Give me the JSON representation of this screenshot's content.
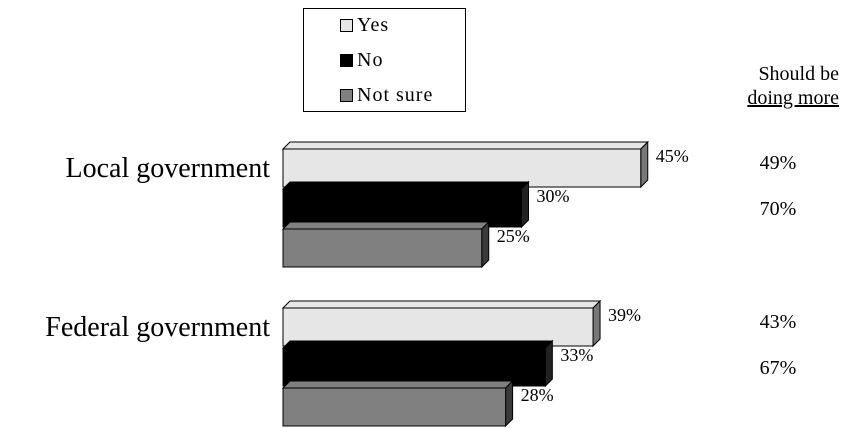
{
  "chart_data": {
    "type": "bar",
    "orientation": "horizontal",
    "categories": [
      "Local government",
      "Federal government"
    ],
    "series": [
      {
        "name": "Yes",
        "color": "#e6e6e6",
        "side": "#777777",
        "values": [
          45,
          39
        ],
        "labels": [
          "45%",
          "39%"
        ]
      },
      {
        "name": "No",
        "color": "#000000",
        "side": "#222222",
        "values": [
          30,
          33
        ],
        "labels": [
          "30%",
          "33%"
        ]
      },
      {
        "name": "Not sure",
        "color": "#808080",
        "side": "#3a3a3a",
        "values": [
          25,
          28
        ],
        "labels": [
          "25%",
          "28%"
        ]
      }
    ],
    "side_column": {
      "header_line1": "Should be",
      "header_line2": "doing more",
      "values": [
        [
          "49%",
          "70%"
        ],
        [
          "43%",
          "67%"
        ]
      ]
    },
    "legend_position": "top-center",
    "grid": false
  }
}
